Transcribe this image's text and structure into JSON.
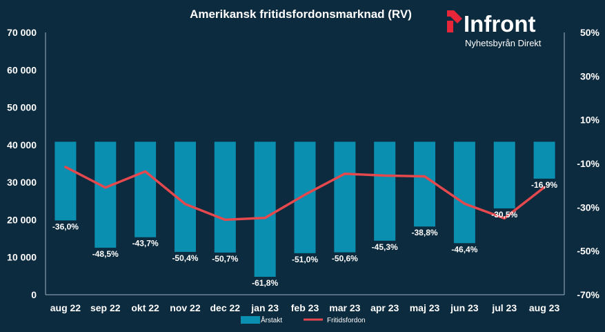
{
  "chart_data": {
    "type": "bar",
    "title": "Amerikansk fritidsfordonsmarknad (RV)",
    "categories": [
      "aug 22",
      "sep 22",
      "okt 22",
      "nov 22",
      "dec 22",
      "jan 23",
      "feb 23",
      "mar 23",
      "apr 23",
      "maj 23",
      "jun 23",
      "jul 23",
      "aug 23"
    ],
    "series": [
      {
        "name": "Årstakt",
        "type": "bar",
        "axis": "right",
        "color": "#0a8fb0",
        "values": [
          -36.0,
          -48.5,
          -43.7,
          -50.4,
          -50.7,
          -61.8,
          -51.0,
          -50.6,
          -45.3,
          -38.8,
          -46.4,
          -30.5,
          -16.9
        ],
        "labels": [
          "-36,0%",
          "-48,5%",
          "-43,7%",
          "-50,4%",
          "-50,7%",
          "-61,8%",
          "-51,0%",
          "-50,6%",
          "-45,3%",
          "-38,8%",
          "-46,4%",
          "-30,5%",
          "-16,9%"
        ]
      },
      {
        "name": "Fritidsfordon",
        "type": "line",
        "axis": "left",
        "color": "#e5484d",
        "values": [
          34100,
          28600,
          32900,
          24200,
          20000,
          20500,
          26700,
          32300,
          31800,
          31600,
          24300,
          20400,
          28700
        ]
      }
    ],
    "left_axis": {
      "min": 0,
      "max": 70000,
      "ticks": [
        "0",
        "10 000",
        "20 000",
        "30 000",
        "40 000",
        "50 000",
        "60 000",
        "70 000"
      ]
    },
    "right_axis": {
      "min": -70,
      "max": 50,
      "ticks": [
        "-70%",
        "-50%",
        "-30%",
        "-10%",
        "10%",
        "30%",
        "50%"
      ]
    },
    "grid": false,
    "legend_position": "bottom"
  },
  "logo": {
    "name": "Infront",
    "subtitle": "Nyhetsbyrån Direkt",
    "accent_color": "#e8263a"
  }
}
